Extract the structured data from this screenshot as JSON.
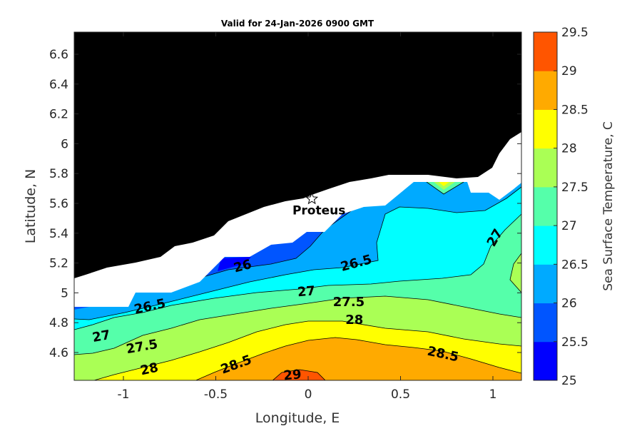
{
  "chart_data": {
    "type": "heatmap",
    "subtype": "filled contour map",
    "title": "Valid for 24-Jan-2026 0900 GMT",
    "xlabel": "Longitude, E",
    "ylabel": "Latitude, N",
    "xlim": [
      -1.266,
      1.154
    ],
    "ylim": [
      4.413,
      6.748
    ],
    "xticks": [
      -1,
      -0.5,
      0,
      0.5,
      1
    ],
    "xtick_labels": [
      "-1",
      "-0.5",
      "0",
      "0.5",
      "1"
    ],
    "yticks": [
      4.6,
      4.8,
      5,
      5.2,
      5.4,
      5.6,
      5.8,
      6,
      6.2,
      6.4,
      6.6
    ],
    "ytick_labels": [
      "4.6",
      "4.8",
      "5",
      "5.2",
      "5.4",
      "5.6",
      "5.8",
      "6",
      "6.2",
      "6.4",
      "6.6"
    ],
    "colorbar": {
      "label": "Sea Surface Temperature, C",
      "range": [
        25,
        29.5
      ],
      "ticks": [
        "25",
        "25.5",
        "26",
        "26.5",
        "27",
        "27.5",
        "28",
        "28.5",
        "29",
        "29.5"
      ],
      "band_colors": [
        "#0000ff",
        "#0055ff",
        "#00aaff",
        "#00ffff",
        "#55ffaa",
        "#aaff55",
        "#ffff00",
        "#ffaa00",
        "#ff5500"
      ]
    },
    "contour_levels": [
      25.5,
      26,
      26.5,
      27,
      27.5,
      28,
      28.5,
      29
    ],
    "contour_labels": [
      {
        "text": "26",
        "lon": -0.355,
        "lat": 5.18,
        "rot": -15
      },
      {
        "text": "26.5",
        "lon": 0.26,
        "lat": 5.2,
        "rot": -15
      },
      {
        "text": "26.5",
        "lon": -0.857,
        "lat": 4.91,
        "rot": -12
      },
      {
        "text": "27",
        "lon": -0.01,
        "lat": 5.01,
        "rot": -5
      },
      {
        "text": "27.5",
        "lon": 0.22,
        "lat": 4.94,
        "rot": 0
      },
      {
        "text": "28",
        "lon": 0.25,
        "lat": 4.82,
        "rot": 0
      },
      {
        "text": "27",
        "lon": -1.12,
        "lat": 4.71,
        "rot": -10
      },
      {
        "text": "27.5",
        "lon": -0.9,
        "lat": 4.64,
        "rot": -10
      },
      {
        "text": "28",
        "lon": -0.86,
        "lat": 4.49,
        "rot": -12
      },
      {
        "text": "28.5",
        "lon": -0.39,
        "lat": 4.52,
        "rot": -20
      },
      {
        "text": "29",
        "lon": -0.085,
        "lat": 4.45,
        "rot": -5
      },
      {
        "text": "28.5",
        "lon": 0.73,
        "lat": 4.59,
        "rot": 12
      },
      {
        "text": "27",
        "lon": 1.01,
        "lat": 5.37,
        "rot": -60
      }
    ],
    "station": {
      "name": "Proteus",
      "lon": 0.02,
      "lat": 5.63
    },
    "land_color": "#000000",
    "nodata_color": "#ffffff"
  }
}
